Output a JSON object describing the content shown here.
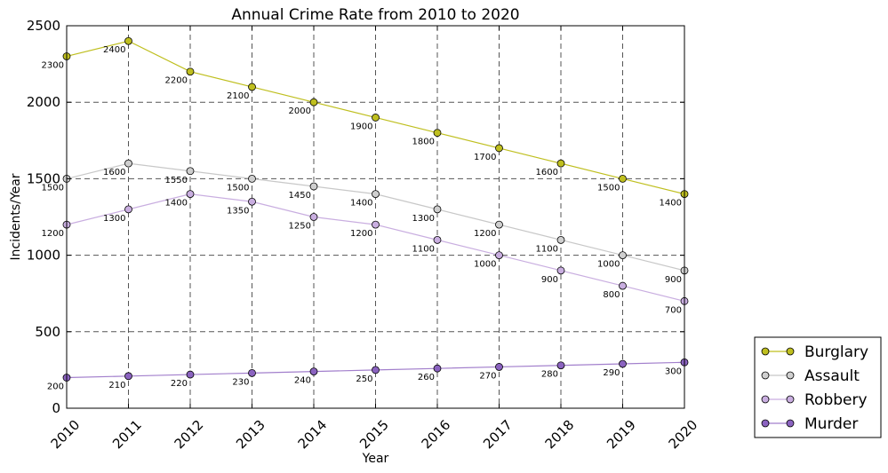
{
  "chart_data": {
    "type": "line",
    "title": "Annual Crime Rate from 2010 to 2020",
    "xlabel": "Year",
    "ylabel": "Incidents/Year",
    "x": [
      2010,
      2011,
      2012,
      2013,
      2014,
      2015,
      2016,
      2017,
      2018,
      2019,
      2020
    ],
    "x_tick_labels": [
      "2010",
      "2011",
      "2012",
      "2013",
      "2014",
      "2015",
      "2016",
      "2017",
      "2018",
      "2019",
      "2020"
    ],
    "ylim": [
      0,
      2500
    ],
    "y_ticks": [
      0,
      500,
      1000,
      1500,
      2000,
      2500
    ],
    "y_tick_labels": [
      "0",
      "500",
      "1000",
      "1500",
      "2000",
      "2500"
    ],
    "grid": true,
    "legend_position": "lower-right-outside",
    "series": [
      {
        "name": "Burglary",
        "color": "#bfbf1f",
        "marker_color": "#bfbf1f",
        "values": [
          2300,
          2400,
          2200,
          2100,
          2000,
          1900,
          1800,
          1700,
          1600,
          1500,
          1400
        ],
        "labels": [
          "2300",
          "2400",
          "2200",
          "2100",
          "2000",
          "1900",
          "1800",
          "1700",
          "1600",
          "1500",
          "1400"
        ]
      },
      {
        "name": "Assault",
        "color": "#c8c8c8",
        "marker_color": "#cfcfcf",
        "values": [
          1500,
          1600,
          1550,
          1500,
          1450,
          1400,
          1300,
          1200,
          1100,
          1000,
          900
        ],
        "labels": [
          "1500",
          "1600",
          "1550",
          "1500",
          "1450",
          "1400",
          "1300",
          "1200",
          "1100",
          "1000",
          "900"
        ]
      },
      {
        "name": "Robbery",
        "color": "#c9aee0",
        "marker_color": "#c9aee0",
        "values": [
          1200,
          1300,
          1400,
          1350,
          1250,
          1200,
          1100,
          1000,
          900,
          800,
          700
        ],
        "labels": [
          "1200",
          "1300",
          "1400",
          "1350",
          "1250",
          "1200",
          "1100",
          "1000",
          "900",
          "800",
          "700"
        ]
      },
      {
        "name": "Murder",
        "color": "#a27fcc",
        "marker_color": "#8b63c0",
        "values": [
          200,
          210,
          220,
          230,
          240,
          250,
          260,
          270,
          280,
          290,
          300
        ],
        "labels": [
          "200",
          "210",
          "220",
          "230",
          "240",
          "250",
          "260",
          "270",
          "280",
          "290",
          "300"
        ]
      }
    ]
  }
}
